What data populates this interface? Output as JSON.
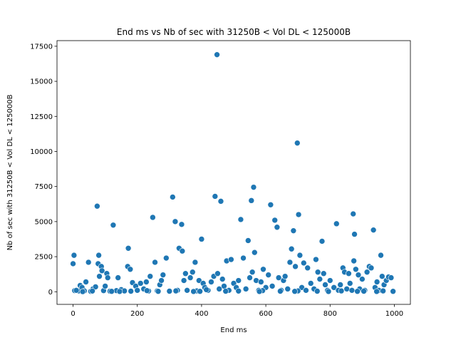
{
  "chart_data": {
    "type": "scatter",
    "title": "End ms vs Nb of sec with 31250B < Vol DL < 125000B",
    "xlabel": "End ms",
    "ylabel": "Nb of sec with 31250B < Vol DL < 125000B",
    "xlim": [
      -50,
      1050
    ],
    "ylim": [
      -900,
      17900
    ],
    "xticks": [
      0,
      200,
      400,
      600,
      800,
      1000
    ],
    "yticks": [
      0,
      2500,
      5000,
      7500,
      10000,
      12500,
      15000,
      17500
    ],
    "grid": false,
    "marker_color": "#1f77b4",
    "points": [
      [
        0,
        2000
      ],
      [
        3,
        2600
      ],
      [
        5,
        80
      ],
      [
        18,
        60
      ],
      [
        22,
        450
      ],
      [
        28,
        300
      ],
      [
        35,
        60
      ],
      [
        40,
        700
      ],
      [
        48,
        2100
      ],
      [
        55,
        30
      ],
      [
        62,
        200
      ],
      [
        70,
        350
      ],
      [
        75,
        6100
      ],
      [
        78,
        2000
      ],
      [
        80,
        2600
      ],
      [
        82,
        1100
      ],
      [
        88,
        1800
      ],
      [
        90,
        1500
      ],
      [
        95,
        80
      ],
      [
        100,
        400
      ],
      [
        105,
        1300
      ],
      [
        108,
        1000
      ],
      [
        115,
        40
      ],
      [
        125,
        4750
      ],
      [
        135,
        80
      ],
      [
        140,
        1000
      ],
      [
        150,
        150
      ],
      [
        160,
        60
      ],
      [
        170,
        1800
      ],
      [
        172,
        3100
      ],
      [
        178,
        1600
      ],
      [
        185,
        650
      ],
      [
        195,
        400
      ],
      [
        200,
        100
      ],
      [
        210,
        600
      ],
      [
        220,
        200
      ],
      [
        228,
        700
      ],
      [
        235,
        50
      ],
      [
        240,
        1100
      ],
      [
        248,
        5300
      ],
      [
        255,
        2100
      ],
      [
        262,
        60
      ],
      [
        270,
        500
      ],
      [
        275,
        800
      ],
      [
        280,
        1200
      ],
      [
        290,
        2400
      ],
      [
        300,
        40
      ],
      [
        310,
        6750
      ],
      [
        318,
        5000
      ],
      [
        325,
        100
      ],
      [
        330,
        3100
      ],
      [
        338,
        4800
      ],
      [
        340,
        2900
      ],
      [
        345,
        800
      ],
      [
        350,
        1300
      ],
      [
        355,
        100
      ],
      [
        365,
        1000
      ],
      [
        372,
        1400
      ],
      [
        380,
        2100
      ],
      [
        385,
        60
      ],
      [
        392,
        800
      ],
      [
        400,
        3750
      ],
      [
        405,
        600
      ],
      [
        410,
        300
      ],
      [
        420,
        100
      ],
      [
        430,
        700
      ],
      [
        438,
        1100
      ],
      [
        442,
        6800
      ],
      [
        448,
        16900
      ],
      [
        450,
        1300
      ],
      [
        455,
        200
      ],
      [
        460,
        6450
      ],
      [
        465,
        900
      ],
      [
        470,
        400
      ],
      [
        478,
        2200
      ],
      [
        485,
        100
      ],
      [
        492,
        2300
      ],
      [
        500,
        600
      ],
      [
        508,
        300
      ],
      [
        515,
        800
      ],
      [
        522,
        5150
      ],
      [
        530,
        2400
      ],
      [
        538,
        200
      ],
      [
        545,
        3650
      ],
      [
        550,
        1000
      ],
      [
        555,
        6500
      ],
      [
        558,
        1400
      ],
      [
        562,
        7450
      ],
      [
        565,
        2800
      ],
      [
        570,
        800
      ],
      [
        578,
        100
      ],
      [
        585,
        700
      ],
      [
        592,
        1600
      ],
      [
        600,
        300
      ],
      [
        608,
        1200
      ],
      [
        615,
        6200
      ],
      [
        620,
        400
      ],
      [
        628,
        5100
      ],
      [
        635,
        4600
      ],
      [
        640,
        1000
      ],
      [
        648,
        100
      ],
      [
        655,
        800
      ],
      [
        660,
        1100
      ],
      [
        668,
        200
      ],
      [
        675,
        2100
      ],
      [
        680,
        3050
      ],
      [
        686,
        4350
      ],
      [
        692,
        1800
      ],
      [
        698,
        10600
      ],
      [
        702,
        5500
      ],
      [
        706,
        2600
      ],
      [
        712,
        300
      ],
      [
        718,
        2050
      ],
      [
        725,
        100
      ],
      [
        730,
        1700
      ],
      [
        740,
        600
      ],
      [
        750,
        200
      ],
      [
        756,
        2300
      ],
      [
        762,
        1400
      ],
      [
        768,
        900
      ],
      [
        775,
        3600
      ],
      [
        780,
        1300
      ],
      [
        785,
        500
      ],
      [
        792,
        100
      ],
      [
        800,
        800
      ],
      [
        812,
        300
      ],
      [
        820,
        4850
      ],
      [
        826,
        100
      ],
      [
        832,
        500
      ],
      [
        840,
        1700
      ],
      [
        845,
        1400
      ],
      [
        852,
        200
      ],
      [
        858,
        1300
      ],
      [
        862,
        600
      ],
      [
        868,
        100
      ],
      [
        872,
        5550
      ],
      [
        874,
        2200
      ],
      [
        876,
        4100
      ],
      [
        880,
        1600
      ],
      [
        888,
        1200
      ],
      [
        892,
        200
      ],
      [
        900,
        900
      ],
      [
        908,
        100
      ],
      [
        915,
        1400
      ],
      [
        922,
        1800
      ],
      [
        928,
        1700
      ],
      [
        935,
        4400
      ],
      [
        940,
        300
      ],
      [
        946,
        700
      ],
      [
        952,
        100
      ],
      [
        958,
        2600
      ],
      [
        962,
        1100
      ],
      [
        968,
        500
      ],
      [
        975,
        800
      ],
      [
        982,
        1050
      ],
      [
        990,
        1000
      ],
      [
        996,
        30
      ],
      [
        10,
        100
      ],
      [
        60,
        50
      ],
      [
        120,
        30
      ],
      [
        180,
        40
      ],
      [
        230,
        80
      ],
      [
        320,
        60
      ],
      [
        395,
        30
      ],
      [
        415,
        150
      ],
      [
        515,
        50
      ],
      [
        590,
        80
      ],
      [
        645,
        40
      ],
      [
        700,
        60
      ],
      [
        760,
        40
      ],
      [
        835,
        60
      ],
      [
        905,
        40
      ],
      [
        965,
        60
      ],
      [
        30,
        10
      ],
      [
        145,
        20
      ],
      [
        265,
        30
      ],
      [
        375,
        20
      ],
      [
        475,
        40
      ],
      [
        580,
        20
      ],
      [
        690,
        30
      ],
      [
        795,
        20
      ],
      [
        885,
        30
      ],
      [
        945,
        20
      ]
    ]
  }
}
